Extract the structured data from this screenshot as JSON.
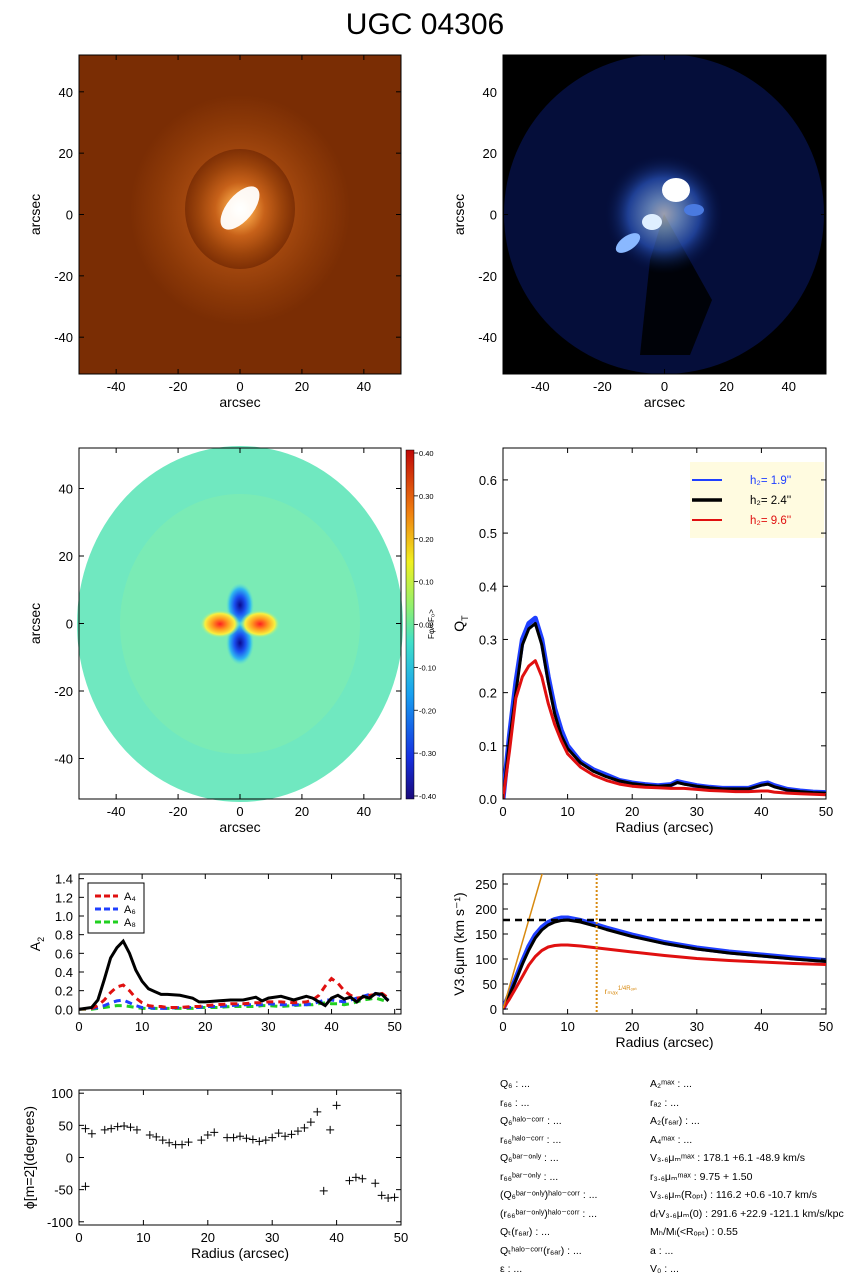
{
  "title": "UGC 04306",
  "colors": {
    "orange_image": "#7a2d04",
    "blue_image": "#000000",
    "hz1": "#1f3fff",
    "hz2": "#000000",
    "hz3": "#e01010",
    "a4": "#e01010",
    "a6": "#1f3fff",
    "a8": "#20d020",
    "vmax_line": "#d88a10",
    "legend_bg": "#fffbe0"
  },
  "chart_data": [
    {
      "id": "nir-image",
      "type": "heatmap",
      "colormap": "orange",
      "xlabel": "arcsec",
      "ylabel": "arcsec",
      "xlim": [
        -52,
        52
      ],
      "ylim": [
        -52,
        52
      ],
      "xticks": [
        "-40",
        "-20",
        "0",
        "20",
        "40"
      ],
      "yticks": [
        "-40",
        "-20",
        "0",
        "20",
        "40"
      ]
    },
    {
      "id": "residual-image",
      "type": "heatmap",
      "colormap": "blue",
      "xlabel": "arcsec",
      "ylabel": "arcsec",
      "xlim": [
        -52,
        52
      ],
      "ylim": [
        -52,
        52
      ],
      "xticks": [
        "-40",
        "-20",
        "0",
        "20",
        "40"
      ],
      "yticks": [
        "-40",
        "-20",
        "0",
        "20",
        "40"
      ]
    },
    {
      "id": "force-ratio-map",
      "type": "heatmap",
      "colormap": "rainbow",
      "xlabel": "arcsec",
      "ylabel": "arcsec",
      "colorbar_label": "Fφ/<F₀>",
      "colorbar_ticks": [
        "0.40",
        "0.30",
        "0.20",
        "0.10",
        "0.00",
        "-0.10",
        "-0.20",
        "-0.30",
        "-0.40"
      ],
      "xlim": [
        -52,
        52
      ],
      "ylim": [
        -52,
        52
      ],
      "xticks": [
        "-40",
        "-20",
        "0",
        "20",
        "40"
      ],
      "yticks": [
        "-40",
        "-20",
        "0",
        "20",
        "40"
      ]
    },
    {
      "id": "qt-profile",
      "type": "line",
      "xlabel": "Radius (arcsec)",
      "ylabel": "Q",
      "ylabel_sub": "T",
      "xlim": [
        0,
        50
      ],
      "ylim": [
        0,
        0.66
      ],
      "xticks": [
        0,
        10,
        20,
        30,
        40,
        50
      ],
      "yticks": [
        "0.0",
        "0.1",
        "0.2",
        "0.3",
        "0.4",
        "0.5",
        "0.6"
      ],
      "x": [
        0,
        1,
        2,
        3,
        4,
        5,
        6,
        7,
        8,
        9,
        10,
        12,
        14,
        16,
        18,
        20,
        22,
        24,
        26,
        27,
        28,
        30,
        32,
        34,
        36,
        38,
        40,
        41,
        42,
        44,
        46,
        48,
        50
      ],
      "series": [
        {
          "name": "h₂=   1.9''",
          "values": [
            0.0,
            0.12,
            0.22,
            0.3,
            0.33,
            0.34,
            0.3,
            0.23,
            0.17,
            0.13,
            0.1,
            0.07,
            0.055,
            0.045,
            0.035,
            0.03,
            0.027,
            0.025,
            0.027,
            0.033,
            0.03,
            0.025,
            0.022,
            0.02,
            0.02,
            0.02,
            0.028,
            0.03,
            0.025,
            0.018,
            0.015,
            0.013,
            0.012
          ]
        },
        {
          "name": "h₂=   2.4''",
          "values": [
            0.0,
            0.11,
            0.2,
            0.29,
            0.32,
            0.33,
            0.29,
            0.22,
            0.16,
            0.12,
            0.095,
            0.068,
            0.052,
            0.042,
            0.034,
            0.029,
            0.026,
            0.024,
            0.026,
            0.031,
            0.028,
            0.024,
            0.021,
            0.019,
            0.019,
            0.019,
            0.026,
            0.028,
            0.023,
            0.017,
            0.014,
            0.012,
            0.011
          ]
        },
        {
          "name": "h₂=   9.6''",
          "values": [
            0.0,
            0.09,
            0.19,
            0.23,
            0.25,
            0.26,
            0.23,
            0.18,
            0.14,
            0.11,
            0.085,
            0.06,
            0.045,
            0.035,
            0.028,
            0.024,
            0.022,
            0.021,
            0.02,
            0.02,
            0.02,
            0.018,
            0.016,
            0.015,
            0.014,
            0.014,
            0.015,
            0.015,
            0.013,
            0.011,
            0.01,
            0.009,
            0.008
          ]
        }
      ]
    },
    {
      "id": "fourier-amplitudes",
      "type": "line",
      "ylabel": "A",
      "ylabel_sub": "2",
      "xlim": [
        0,
        51
      ],
      "ylim": [
        -0.05,
        1.45
      ],
      "xticks": [
        0,
        10,
        20,
        30,
        40,
        50
      ],
      "yticks": [
        "0.0",
        "0.2",
        "0.4",
        "0.6",
        "0.8",
        "1.0",
        "1.2",
        "1.4"
      ],
      "x": [
        0,
        2,
        3,
        4,
        5,
        6,
        7,
        8,
        9,
        10,
        11,
        12,
        13,
        14,
        16,
        18,
        19,
        20,
        22,
        24,
        26,
        28,
        29,
        30,
        32,
        34,
        36,
        37,
        38,
        39,
        40,
        41,
        42,
        43,
        44,
        45,
        46,
        47,
        48,
        49
      ],
      "series": [
        {
          "name": "A₂",
          "values": [
            0.0,
            0.02,
            0.1,
            0.32,
            0.55,
            0.66,
            0.73,
            0.6,
            0.42,
            0.3,
            0.22,
            0.19,
            0.16,
            0.16,
            0.15,
            0.12,
            0.08,
            0.08,
            0.09,
            0.1,
            0.1,
            0.13,
            0.09,
            0.12,
            0.14,
            0.1,
            0.14,
            0.12,
            0.08,
            0.04,
            0.12,
            0.15,
            0.11,
            0.13,
            0.08,
            0.14,
            0.12,
            0.17,
            0.16,
            0.09
          ]
        },
        {
          "name": "A₄",
          "values": [
            0.0,
            0.01,
            0.04,
            0.1,
            0.18,
            0.24,
            0.26,
            0.2,
            0.12,
            0.07,
            0.04,
            0.03,
            0.03,
            0.02,
            0.02,
            0.03,
            0.03,
            0.04,
            0.05,
            0.06,
            0.06,
            0.07,
            0.07,
            0.08,
            0.08,
            0.07,
            0.08,
            0.1,
            0.15,
            0.25,
            0.33,
            0.28,
            0.2,
            0.15,
            0.12,
            0.13,
            0.15,
            0.16,
            0.17,
            0.12
          ]
        },
        {
          "name": "A₆",
          "values": [
            0.0,
            0.01,
            0.02,
            0.04,
            0.07,
            0.09,
            0.1,
            0.07,
            0.04,
            0.02,
            0.02,
            0.01,
            0.01,
            0.01,
            0.02,
            0.02,
            0.02,
            0.03,
            0.03,
            0.04,
            0.05,
            0.05,
            0.05,
            0.06,
            0.05,
            0.05,
            0.05,
            0.06,
            0.08,
            0.1,
            0.1,
            0.09,
            0.08,
            0.1,
            0.12,
            0.14,
            0.16,
            0.17,
            0.14,
            0.1
          ]
        },
        {
          "name": "A₈",
          "values": [
            0.0,
            0.0,
            0.01,
            0.02,
            0.03,
            0.04,
            0.04,
            0.03,
            0.02,
            0.01,
            0.01,
            0.01,
            0.01,
            0.01,
            0.01,
            0.01,
            0.02,
            0.02,
            0.02,
            0.03,
            0.03,
            0.03,
            0.04,
            0.04,
            0.03,
            0.04,
            0.05,
            0.05,
            0.06,
            0.07,
            0.06,
            0.06,
            0.05,
            0.06,
            0.08,
            0.1,
            0.11,
            0.12,
            0.1,
            0.08
          ]
        }
      ]
    },
    {
      "id": "rotation-curve",
      "type": "line",
      "xlabel": "Radius (arcsec)",
      "ylabel": "V3.6μm (km s⁻¹)",
      "xlim": [
        0,
        50
      ],
      "ylim": [
        -10,
        270
      ],
      "xticks": [
        0,
        10,
        20,
        30,
        40,
        50
      ],
      "yticks": [
        "0",
        "50",
        "100",
        "150",
        "200",
        "250"
      ],
      "vmax": 178.1,
      "rmax": 14.5,
      "rmax_label": "rₘₐₓ",
      "rmax_label_sup": "1/4Rₒₚₜ",
      "x": [
        0,
        1,
        2,
        3,
        4,
        5,
        6,
        7,
        8,
        9,
        10,
        12,
        14,
        16,
        18,
        20,
        25,
        30,
        35,
        40,
        45,
        50
      ],
      "series": [
        {
          "name": "h₂=   1.9''",
          "values": [
            0,
            30,
            62,
            95,
            125,
            148,
            163,
            173,
            179,
            182,
            182,
            177,
            170,
            162,
            155,
            148,
            133,
            122,
            114,
            108,
            102,
            97
          ]
        },
        {
          "name": "h₂=   2.4''",
          "values": [
            0,
            28,
            58,
            90,
            118,
            142,
            158,
            168,
            174,
            177,
            178,
            174,
            167,
            159,
            152,
            145,
            131,
            120,
            112,
            106,
            100,
            95
          ]
        },
        {
          "name": "h₂=   9.6''",
          "values": [
            0,
            20,
            42,
            65,
            88,
            105,
            117,
            124,
            127,
            128,
            128,
            126,
            123,
            120,
            117,
            114,
            107,
            101,
            97,
            94,
            91,
            89
          ]
        }
      ]
    },
    {
      "id": "phase-profile",
      "type": "scatter",
      "xlabel": "Radius (arcsec)",
      "ylabel": "ϕ[m=2](degrees)",
      "xlim": [
        0,
        50
      ],
      "ylim": [
        -105,
        105
      ],
      "xticks": [
        0,
        10,
        20,
        30,
        40,
        50
      ],
      "yticks": [
        "100",
        "50",
        "0",
        "-50",
        "-100"
      ],
      "points": [
        [
          1,
          45
        ],
        [
          1,
          -45
        ],
        [
          2,
          37
        ],
        [
          4,
          43
        ],
        [
          5,
          45
        ],
        [
          6,
          48
        ],
        [
          7,
          49
        ],
        [
          8,
          47
        ],
        [
          9,
          43
        ],
        [
          11,
          35
        ],
        [
          12,
          32
        ],
        [
          13,
          27
        ],
        [
          14,
          23
        ],
        [
          15,
          20
        ],
        [
          16,
          20
        ],
        [
          17,
          24
        ],
        [
          19,
          27
        ],
        [
          20,
          35
        ],
        [
          21,
          39
        ],
        [
          23,
          31
        ],
        [
          24,
          31
        ],
        [
          25,
          33
        ],
        [
          26,
          30
        ],
        [
          27,
          28
        ],
        [
          28,
          25
        ],
        [
          29,
          27
        ],
        [
          30,
          31
        ],
        [
          31,
          38
        ],
        [
          32,
          33
        ],
        [
          33,
          36
        ],
        [
          34,
          41
        ],
        [
          35,
          46
        ],
        [
          36,
          55
        ],
        [
          37,
          71
        ],
        [
          38,
          -52
        ],
        [
          39,
          43
        ],
        [
          40,
          81
        ],
        [
          42,
          -36
        ],
        [
          43,
          -31
        ],
        [
          44,
          -33
        ],
        [
          46,
          -40
        ],
        [
          47,
          -59
        ],
        [
          48,
          -63
        ],
        [
          49,
          -62
        ]
      ]
    }
  ],
  "params": {
    "left": [
      "Q₆ : ...",
      "r₆₆ : ...",
      "Q₆ʰᵃˡᵒ⁻ᶜᵒʳʳ : ...",
      "r₆₆ʰᵃˡᵒ⁻ᶜᵒʳʳ : ...",
      "Q₆ᵇᵃʳ⁻ᵒⁿˡʸ : ...",
      "r₆₆ᵇᵃʳ⁻ᵒⁿˡʸ : ...",
      "(Q₆ᵇᵃʳ⁻ᵒⁿˡʸ)ʰᵃˡᵒ⁻ᶜᵒʳʳ : ...",
      "(r₆₆ᵇᵃʳ⁻ᵒⁿˡʸ)ʰᵃˡᵒ⁻ᶜᵒʳʳ : ...",
      "Qₜ(r₆ₐᵣ) : ...",
      "Qₜʰᵃˡᵒ⁻ᶜᵒʳʳ(r₆ₐᵣ) : ...",
      "ε : ..."
    ],
    "right": [
      "A₂ᵐᵃˣ : ...",
      "rₐ₂ : ...",
      "A₂(r₆ₐᵣ) : ...",
      "A₄ᵐᵃˣ : ...",
      "V₃.₆μₘᵐᵃˣ :  178.1 +6.1 -48.9 km/s",
      "r₃.₆μₘᵐᵃˣ :  9.75 + 1.50",
      "V₃.₆μₘ(Rₒₚₜ) :  116.2 +0.6 -10.7 km/s",
      "dᵣV₃.₆μₘ(0) :  291.6 +22.9 -121.1 km/s/kpc",
      "Mₕ/Mₗ(<Rₒₚₜ) :  0.55",
      "a : ...",
      "V₀ : ..."
    ]
  }
}
